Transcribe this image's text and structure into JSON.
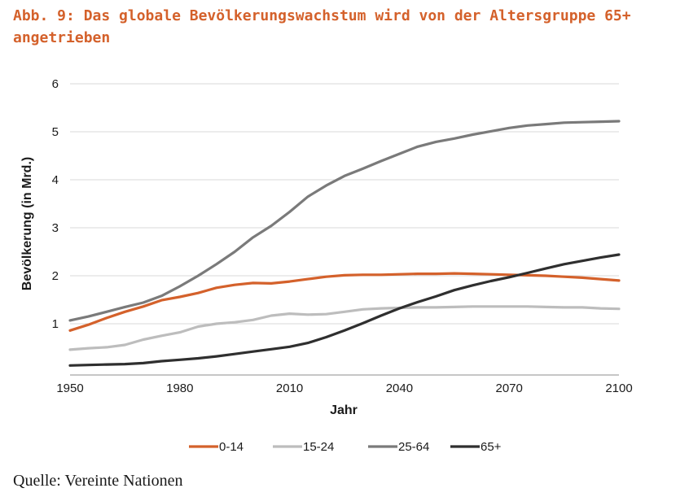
{
  "title": "Abb. 9: Das globale Bevölkerungswachstum wird von der Altersgruppe 65+ angetrieben",
  "source": "Quelle: Vereinte Nationen",
  "colors": {
    "0-14": "#d4612b",
    "15-24": "#bdbdbd",
    "25-64": "#7a7a7a",
    "65+": "#2f2f2f",
    "grid": "#d9d9d9",
    "title": "#d4612b"
  },
  "chart_data": {
    "type": "line",
    "title": "Abb. 9: Das globale Bevölkerungswachstum wird von der Altersgruppe 65+ angetrieben",
    "xlabel": "Jahr",
    "ylabel": "Bevölkerung (in Mrd.)",
    "xlim": [
      1950,
      2100
    ],
    "ylim": [
      0,
      6
    ],
    "xticks": [
      1950,
      1980,
      2010,
      2040,
      2070,
      2100
    ],
    "yticks": [
      1,
      2,
      3,
      4,
      5,
      6
    ],
    "grid": true,
    "legend_position": "bottom",
    "x": [
      1950,
      1955,
      1960,
      1965,
      1970,
      1975,
      1980,
      1985,
      1990,
      1995,
      2000,
      2005,
      2010,
      2015,
      2020,
      2025,
      2030,
      2035,
      2040,
      2045,
      2050,
      2055,
      2060,
      2065,
      2070,
      2075,
      2080,
      2085,
      2090,
      2095,
      2100
    ],
    "series": [
      {
        "name": "0-14",
        "values": [
          0.86,
          0.98,
          1.12,
          1.25,
          1.36,
          1.49,
          1.56,
          1.64,
          1.75,
          1.81,
          1.85,
          1.84,
          1.88,
          1.93,
          1.98,
          2.01,
          2.02,
          2.02,
          2.03,
          2.04,
          2.04,
          2.05,
          2.04,
          2.03,
          2.02,
          2.01,
          2.0,
          1.98,
          1.96,
          1.93,
          1.9
        ]
      },
      {
        "name": "15-24",
        "values": [
          0.46,
          0.49,
          0.51,
          0.56,
          0.67,
          0.75,
          0.82,
          0.94,
          1.0,
          1.03,
          1.08,
          1.17,
          1.21,
          1.19,
          1.2,
          1.25,
          1.3,
          1.32,
          1.33,
          1.34,
          1.34,
          1.35,
          1.36,
          1.36,
          1.36,
          1.36,
          1.35,
          1.34,
          1.34,
          1.32,
          1.31
        ]
      },
      {
        "name": "25-64",
        "values": [
          1.07,
          1.15,
          1.25,
          1.35,
          1.44,
          1.58,
          1.78,
          2.0,
          2.24,
          2.5,
          2.8,
          3.04,
          3.33,
          3.65,
          3.88,
          4.08,
          4.23,
          4.39,
          4.54,
          4.69,
          4.79,
          4.86,
          4.94,
          5.01,
          5.08,
          5.13,
          5.16,
          5.19,
          5.2,
          5.21,
          5.22
        ]
      },
      {
        "name": "65+",
        "values": [
          0.13,
          0.14,
          0.15,
          0.16,
          0.18,
          0.22,
          0.25,
          0.28,
          0.32,
          0.37,
          0.42,
          0.47,
          0.52,
          0.6,
          0.72,
          0.86,
          1.01,
          1.17,
          1.32,
          1.45,
          1.57,
          1.7,
          1.8,
          1.89,
          1.97,
          2.06,
          2.15,
          2.24,
          2.31,
          2.38,
          2.44
        ]
      }
    ]
  }
}
